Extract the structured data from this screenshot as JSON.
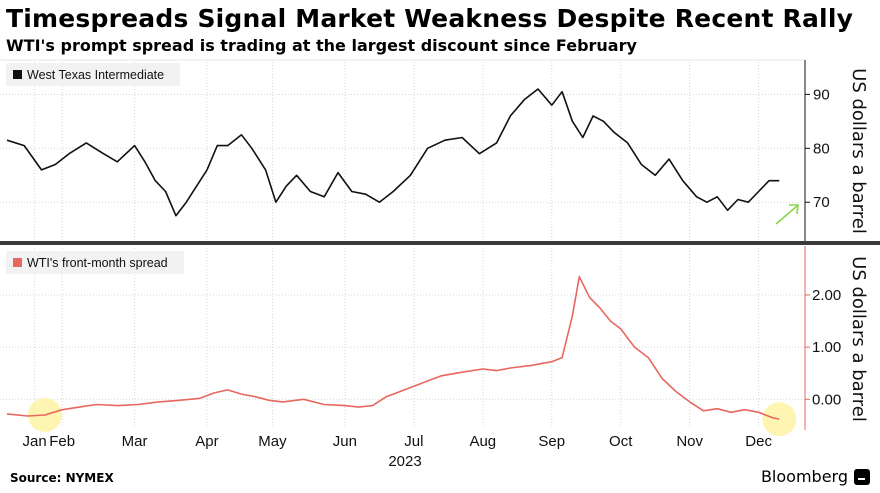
{
  "header": {
    "title": "Timespreads Signal Market Weakness Despite Recent Rally",
    "subtitle": "WTI's prompt spread is trading at the largest discount since February"
  },
  "footer": {
    "source": "Source: NYMEX",
    "brand": "Bloomberg"
  },
  "colors": {
    "wti_line": "#111111",
    "spread_line": "#e8675e",
    "highlight": "#fff3a6",
    "arrow": "#8cd44a",
    "grid": "#cfcfcf",
    "divider": "#3a3a3a"
  },
  "chart_data": [
    {
      "type": "line",
      "title": "West Texas Intermediate",
      "ylabel": "US dollars a barrel",
      "ylim": [
        63,
        96
      ],
      "yticks": [
        70,
        80,
        90
      ],
      "ytick_labels": [
        "70",
        "80",
        "90"
      ],
      "x_range": [
        0,
        11.5
      ],
      "series": [
        {
          "name": "West Texas Intermediate",
          "x": [
            0,
            0.25,
            0.5,
            0.7,
            0.9,
            1.15,
            1.4,
            1.6,
            1.85,
            2.0,
            2.15,
            2.3,
            2.45,
            2.6,
            2.75,
            2.9,
            3.05,
            3.2,
            3.4,
            3.55,
            3.75,
            3.9,
            4.05,
            4.2,
            4.4,
            4.6,
            4.8,
            5.0,
            5.2,
            5.4,
            5.6,
            5.85,
            6.1,
            6.35,
            6.6,
            6.85,
            7.1,
            7.3,
            7.5,
            7.7,
            7.9,
            8.05,
            8.2,
            8.35,
            8.5,
            8.65,
            8.8,
            9.0,
            9.2,
            9.4,
            9.6,
            9.8,
            10.0,
            10.15,
            10.3,
            10.45,
            10.6,
            10.75,
            10.9,
            11.05,
            11.2
          ],
          "values": [
            81.5,
            80.5,
            76,
            77,
            79,
            81,
            79,
            77.5,
            80.5,
            77.5,
            74,
            72,
            67.5,
            70,
            73,
            76,
            80.5,
            80.5,
            82.5,
            80,
            76,
            70,
            73,
            75,
            72,
            71,
            75.5,
            72,
            71.5,
            70,
            72,
            75,
            80,
            81.5,
            82,
            79,
            81,
            86,
            89,
            91,
            88,
            90.5,
            85,
            82,
            86,
            85,
            83,
            81,
            77,
            75,
            78,
            74,
            71,
            70,
            71,
            68.5,
            70.5,
            70,
            72,
            74,
            74
          ]
        }
      ],
      "legend": "top-left",
      "annotations": [
        "green arrow pointing up-right near the latest value"
      ]
    },
    {
      "type": "line",
      "title": "WTI's front-month spread",
      "ylabel": "US dollars a barrel",
      "ylim": [
        -0.55,
        2.9
      ],
      "yticks": [
        0,
        1,
        2
      ],
      "ytick_labels": [
        "0.00",
        "1.00",
        "2.00"
      ],
      "x_range": [
        0,
        11.5
      ],
      "xticks": [
        0.4,
        0.8,
        1.85,
        2.9,
        3.85,
        4.9,
        5.9,
        6.9,
        7.9,
        8.9,
        9.9,
        10.9
      ],
      "xtick_labels": [
        "Jan",
        "Feb",
        "Mar",
        "Apr",
        "May",
        "Jun",
        "Jul",
        "Aug",
        "Sep",
        "Oct",
        "Nov",
        "Dec"
      ],
      "xlabel": "2023",
      "series": [
        {
          "name": "WTI's front-month spread",
          "x": [
            0,
            0.3,
            0.55,
            0.8,
            1.05,
            1.3,
            1.6,
            1.9,
            2.2,
            2.5,
            2.8,
            3.0,
            3.2,
            3.4,
            3.6,
            3.8,
            4.0,
            4.3,
            4.6,
            4.9,
            5.1,
            5.3,
            5.5,
            5.7,
            5.9,
            6.1,
            6.3,
            6.6,
            6.9,
            7.1,
            7.3,
            7.6,
            7.9,
            8.05,
            8.2,
            8.3,
            8.45,
            8.6,
            8.75,
            8.9,
            9.1,
            9.3,
            9.5,
            9.7,
            9.9,
            10.1,
            10.3,
            10.5,
            10.7,
            10.9,
            11.0,
            11.1,
            11.2
          ],
          "values": [
            -0.28,
            -0.32,
            -0.3,
            -0.2,
            -0.15,
            -0.1,
            -0.12,
            -0.1,
            -0.05,
            -0.02,
            0.02,
            0.12,
            0.18,
            0.1,
            0.05,
            -0.02,
            -0.05,
            0.0,
            -0.1,
            -0.12,
            -0.15,
            -0.12,
            0.05,
            0.15,
            0.25,
            0.35,
            0.45,
            0.52,
            0.58,
            0.55,
            0.6,
            0.65,
            0.72,
            0.8,
            1.6,
            2.35,
            1.95,
            1.75,
            1.5,
            1.35,
            1.0,
            0.8,
            0.4,
            0.15,
            -0.05,
            -0.22,
            -0.18,
            -0.25,
            -0.2,
            -0.25,
            -0.3,
            -0.35,
            -0.38
          ]
        }
      ],
      "legend": "top-left",
      "annotations": [
        "yellow highlight circles around January and latest December values"
      ]
    }
  ]
}
